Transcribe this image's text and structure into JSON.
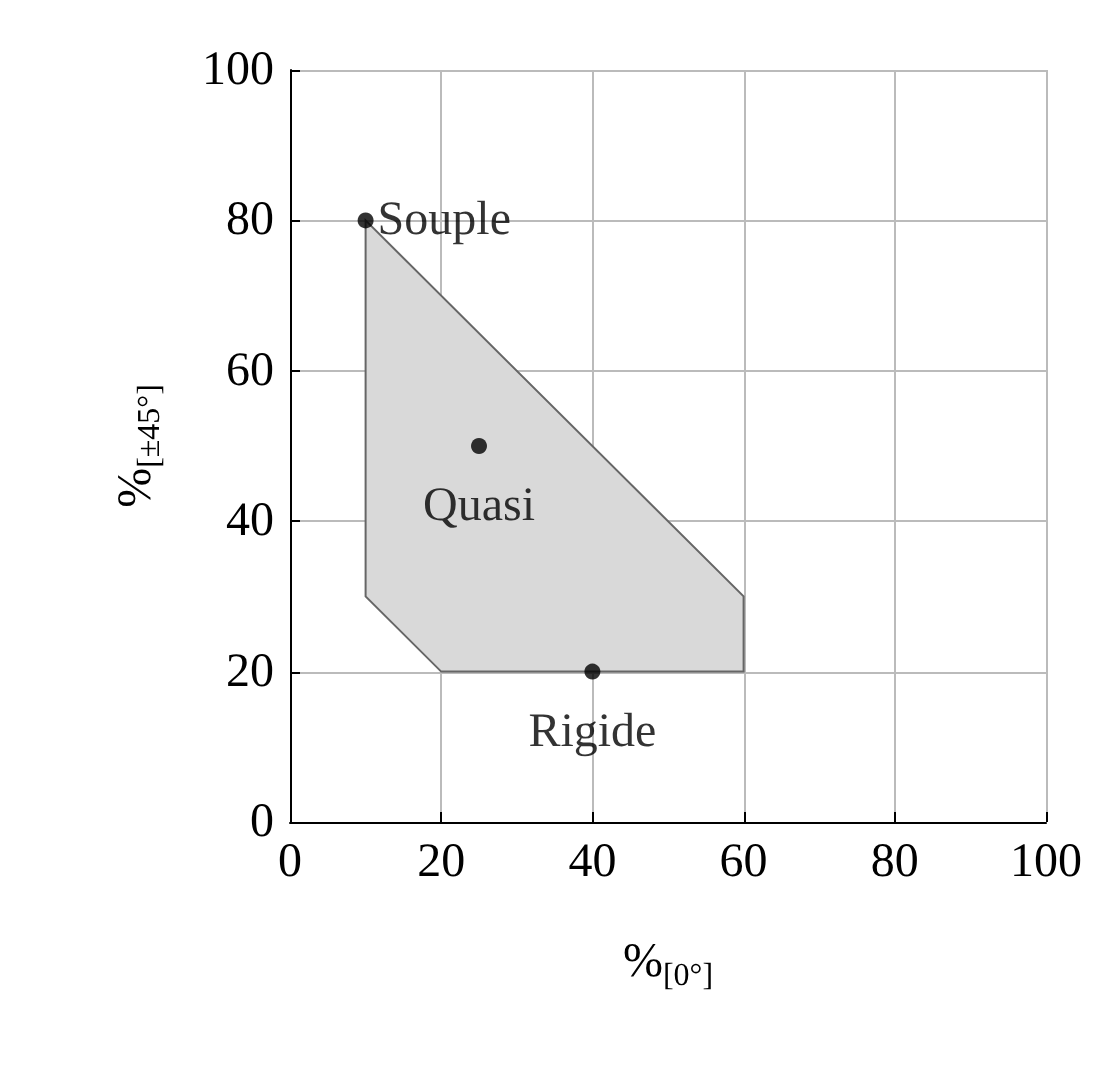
{
  "chart_data": {
    "type": "scatter",
    "xlabel": "%$_{[0°]}$",
    "ylabel": "%$_{[±45°]}$",
    "series": [
      {
        "type": "area",
        "color": "#d9d9d9",
        "x": [
          10,
          10,
          20,
          60,
          60,
          10
        ],
        "values": [
          80,
          30,
          20,
          20,
          30,
          80
        ]
      },
      {
        "color": "#000000",
        "marker": "circle",
        "x": [
          10,
          25,
          40
        ],
        "values": [
          80,
          50,
          20
        ]
      }
    ],
    "annotations": [
      {
        "text": "Souple",
        "x": 10,
        "y": 80
      },
      {
        "text": "Quasi",
        "x": 25,
        "y": 50
      },
      {
        "text": "Rigide",
        "x": 40,
        "y": 20
      }
    ],
    "xlim": [
      0,
      100
    ],
    "ylim": [
      0,
      100
    ],
    "xticks": [
      0,
      20,
      40,
      60,
      80,
      100
    ],
    "yticks": [
      0,
      20,
      40,
      60,
      80,
      100
    ],
    "grid": true
  }
}
